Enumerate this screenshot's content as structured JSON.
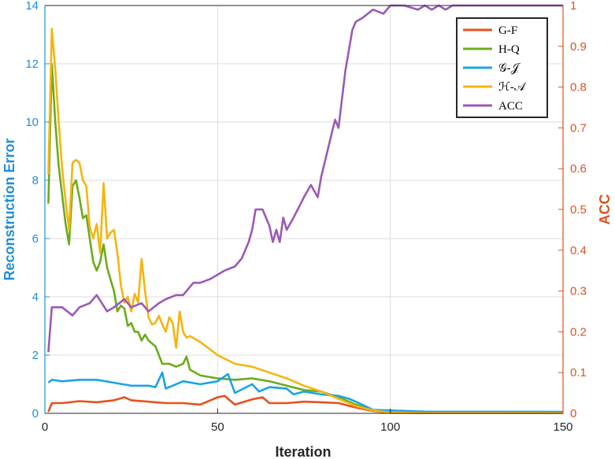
{
  "chart_data": {
    "type": "line",
    "xlabel": "Iteration",
    "ylabel_left": "Reconstruction Error",
    "ylabel_right": "ACC",
    "xlim": [
      0,
      150
    ],
    "ylim_left": [
      0,
      14
    ],
    "ylim_right": [
      0,
      1
    ],
    "grid": true,
    "legend_position": "top-right",
    "x_ticks": [
      "0",
      "50",
      "100",
      "150"
    ],
    "y_left_ticks": [
      "0",
      "2",
      "4",
      "6",
      "8",
      "10",
      "12",
      "14"
    ],
    "y_right_ticks": [
      "0",
      "0.1",
      "0.2",
      "0.3",
      "0.4",
      "0.5",
      "0.6",
      "0.7",
      "0.8",
      "0.9",
      "1"
    ],
    "colors": {
      "left_axis": "#1f8fd6",
      "right_axis": "#d9531e"
    },
    "series": [
      {
        "name": "G-F",
        "axis": "left",
        "color": "#e8501e",
        "x": [
          1,
          2,
          5,
          10,
          15,
          20,
          23,
          25,
          30,
          35,
          40,
          45,
          50,
          52,
          55,
          60,
          63,
          65,
          70,
          75,
          80,
          85,
          90,
          95,
          100,
          110,
          120,
          130,
          140,
          150
        ],
        "y": [
          0.05,
          0.35,
          0.35,
          0.42,
          0.38,
          0.45,
          0.55,
          0.45,
          0.4,
          0.35,
          0.35,
          0.3,
          0.55,
          0.6,
          0.3,
          0.48,
          0.55,
          0.35,
          0.35,
          0.4,
          0.38,
          0.35,
          0.2,
          0.08,
          0.02,
          0.01,
          0.01,
          0.01,
          0.01,
          0.01
        ]
      },
      {
        "name": "H-Q",
        "axis": "left",
        "color": "#6cab1c",
        "x": [
          1,
          2,
          3,
          4,
          5,
          6,
          7,
          8,
          9,
          10,
          11,
          12,
          13,
          14,
          15,
          16,
          17,
          18,
          19,
          20,
          21,
          22,
          23,
          24,
          25,
          26,
          27,
          28,
          29,
          30,
          32,
          34,
          36,
          38,
          40,
          41,
          42,
          45,
          50,
          55,
          60,
          65,
          70,
          75,
          80,
          85,
          90,
          95,
          100,
          110,
          120,
          150
        ],
        "y": [
          7.2,
          12,
          10,
          8.5,
          7.5,
          6.5,
          5.8,
          7.8,
          8,
          7.4,
          6.7,
          6.8,
          6,
          5.2,
          4.9,
          5.2,
          5.8,
          5,
          4.6,
          4.2,
          3.5,
          3.7,
          3.6,
          3,
          3.1,
          2.8,
          2.8,
          2.5,
          2.7,
          2.5,
          2.3,
          1.7,
          1.7,
          1.6,
          1.7,
          1.95,
          1.5,
          1.3,
          1.2,
          1.15,
          1.2,
          1.1,
          0.95,
          0.8,
          0.75,
          0.55,
          0.3,
          0.1,
          0.03,
          0.01,
          0.01,
          0.01
        ]
      },
      {
        "name": "𝒢-𝒥",
        "axis": "left",
        "color": "#1ba3e5",
        "x": [
          1,
          2,
          5,
          10,
          15,
          20,
          25,
          30,
          32,
          34,
          35,
          40,
          45,
          50,
          53,
          55,
          60,
          62,
          65,
          70,
          72,
          75,
          80,
          85,
          88,
          90,
          95,
          100,
          110,
          150
        ],
        "y": [
          1.05,
          1.15,
          1.1,
          1.15,
          1.15,
          1.05,
          0.95,
          0.95,
          0.9,
          1.4,
          0.85,
          1.1,
          1.0,
          1.1,
          1.35,
          0.7,
          1.0,
          0.75,
          0.9,
          0.85,
          0.65,
          0.75,
          0.65,
          0.6,
          0.5,
          0.4,
          0.12,
          0.1,
          0.06,
          0.05
        ]
      },
      {
        "name": "ℋ-𝒜",
        "axis": "left",
        "color": "#f5b50f",
        "x": [
          1,
          2,
          3,
          4,
          5,
          6,
          7,
          8,
          9,
          10,
          11,
          12,
          13,
          14,
          15,
          16,
          17,
          18,
          19,
          20,
          21,
          22,
          23,
          24,
          25,
          26,
          27,
          28,
          29,
          30,
          31,
          32,
          33,
          34,
          35,
          36,
          37,
          38,
          39,
          40,
          41,
          42,
          45,
          50,
          55,
          60,
          65,
          70,
          75,
          80,
          85,
          90,
          95,
          100,
          110,
          150
        ],
        "y": [
          8.2,
          13.2,
          11.8,
          10,
          8.4,
          7.3,
          6.3,
          8.6,
          8.7,
          8.6,
          8,
          7.8,
          6.4,
          6,
          6.5,
          5.5,
          7.9,
          6,
          6.2,
          6.3,
          5.5,
          4.4,
          3.8,
          4,
          3.5,
          4.1,
          3.8,
          5.3,
          4.2,
          3.3,
          3.05,
          3.1,
          3.35,
          3.05,
          2.8,
          3.3,
          3.1,
          2.25,
          3.5,
          2.8,
          2.6,
          2.65,
          2.45,
          2.0,
          1.7,
          1.6,
          1.4,
          1.2,
          0.95,
          0.75,
          0.5,
          0.25,
          0.1,
          0.03,
          0.01,
          0.01
        ]
      },
      {
        "name": "ACC",
        "axis": "right",
        "color": "#9b59b6",
        "x": [
          1,
          2,
          5,
          8,
          10,
          13,
          15,
          18,
          20,
          23,
          25,
          28,
          30,
          33,
          35,
          38,
          40,
          43,
          45,
          48,
          50,
          52,
          55,
          57,
          59,
          60,
          61,
          63,
          65,
          66,
          67,
          68,
          69,
          70,
          72,
          75,
          77,
          79,
          80,
          82,
          84,
          85,
          87,
          89,
          90,
          92,
          95,
          98,
          100,
          104,
          108,
          110,
          112,
          114,
          116,
          118,
          120,
          130,
          150
        ],
        "y": [
          0.15,
          0.26,
          0.26,
          0.24,
          0.26,
          0.27,
          0.29,
          0.25,
          0.26,
          0.28,
          0.26,
          0.27,
          0.25,
          0.27,
          0.28,
          0.29,
          0.29,
          0.32,
          0.32,
          0.33,
          0.34,
          0.35,
          0.36,
          0.38,
          0.42,
          0.45,
          0.5,
          0.5,
          0.46,
          0.42,
          0.45,
          0.42,
          0.48,
          0.45,
          0.48,
          0.53,
          0.56,
          0.53,
          0.58,
          0.65,
          0.72,
          0.7,
          0.84,
          0.94,
          0.96,
          0.97,
          0.99,
          0.98,
          1.0,
          1.0,
          0.99,
          1.0,
          0.99,
          1.0,
          0.99,
          1.0,
          1.0,
          1.0,
          1.0
        ]
      }
    ]
  }
}
